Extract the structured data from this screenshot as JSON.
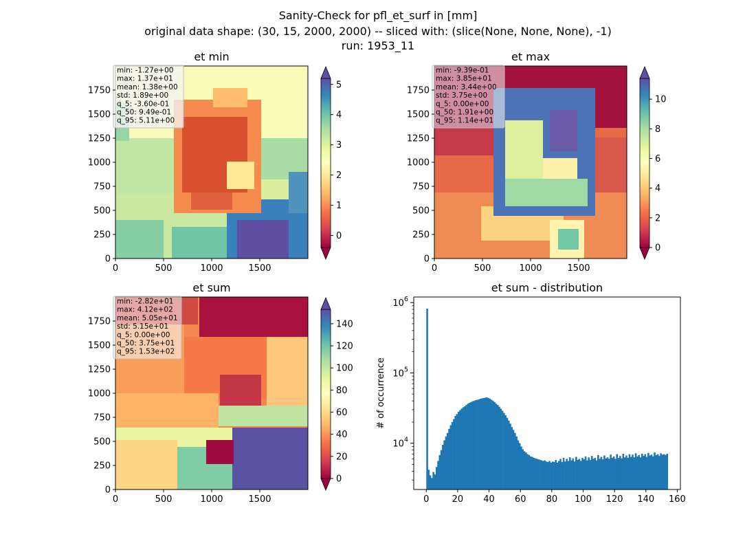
{
  "figure": {
    "title_line1": "Sanity-Check for pfl_et_surf in [mm]",
    "title_line2": "original data shape: (30, 15, 2000, 2000) -- sliced with: (slice(None, None, None), -1)",
    "title_line3": "run: 1953_11"
  },
  "colors": {
    "colormap": "Spectral",
    "histogram_bar": "#1f77b4",
    "stats_box_bg": "#f5f5f5",
    "stats_box_edge": "#bdbdbd"
  },
  "chart_data": [
    {
      "type": "heatmap",
      "title": "et min",
      "xlim": [
        0,
        2000
      ],
      "ylim": [
        0,
        2000
      ],
      "xticks": [
        0,
        500,
        1000,
        1500
      ],
      "yticks": [
        0,
        250,
        500,
        750,
        1000,
        1250,
        1500,
        1750
      ],
      "colormap": "Spectral",
      "colorbar": {
        "min": -0.4,
        "max": 5.2,
        "ticks": [
          0,
          1,
          2,
          3,
          4,
          5
        ],
        "extend": "both"
      },
      "stats": [
        "min: -1.27e+00",
        "max: 1.37e+01",
        "mean: 1.38e+00",
        "std: 1.89e+00",
        "q_5: -3.60e-01",
        "q_50: 9.49e-01",
        "q_95: 5.11e+00"
      ]
    },
    {
      "type": "heatmap",
      "title": "et max",
      "xlim": [
        0,
        2000
      ],
      "ylim": [
        0,
        2000
      ],
      "xticks": [
        0,
        500,
        1000,
        1500
      ],
      "yticks": [
        0,
        250,
        500,
        750,
        1000,
        1250,
        1500,
        1750
      ],
      "colormap": "Spectral",
      "colorbar": {
        "min": 0,
        "max": 11.4,
        "ticks": [
          0,
          2,
          4,
          6,
          8,
          10
        ],
        "extend": "both"
      },
      "stats": [
        "min: -9.39e-01",
        "max: 3.85e+01",
        "mean: 3.44e+00",
        "std: 3.75e+00",
        "q_5: 0.00e+00",
        "q_50: 1.91e+00",
        "q_95: 1.14e+01"
      ]
    },
    {
      "type": "heatmap",
      "title": "et sum",
      "xlim": [
        0,
        2000
      ],
      "ylim": [
        0,
        2000
      ],
      "xticks": [
        0,
        500,
        1000,
        1500
      ],
      "yticks": [
        0,
        250,
        500,
        750,
        1000,
        1250,
        1500,
        1750
      ],
      "colormap": "Spectral",
      "colorbar": {
        "min": 0,
        "max": 153,
        "ticks": [
          0,
          20,
          40,
          60,
          80,
          100,
          120,
          140
        ],
        "extend": "both"
      },
      "stats": [
        "min: -2.82e+01",
        "max: 4.12e+02",
        "mean: 5.05e+01",
        "std: 5.15e+01",
        "q_5: 0.00e+00",
        "q_50: 3.75e+01",
        "q_95: 1.53e+02"
      ]
    },
    {
      "type": "bar",
      "title": "et sum - distribution",
      "xlabel": "",
      "ylabel": "# of occurrence",
      "yscale": "log",
      "xlim": [
        -8,
        162
      ],
      "ylim": [
        2200,
        1200000
      ],
      "xticks": [
        0,
        20,
        40,
        60,
        80,
        100,
        120,
        140,
        160
      ],
      "yticks": [
        {
          "value": 10000,
          "label": "10^4"
        },
        {
          "value": 100000,
          "label": "10^5"
        },
        {
          "value": 1000000,
          "label": "10^6"
        }
      ],
      "bin_width": 1,
      "bins": [
        [
          0,
          820000
        ],
        [
          1,
          4200
        ],
        [
          2,
          3500
        ],
        [
          3,
          3200
        ],
        [
          4,
          3900
        ],
        [
          5,
          3600
        ],
        [
          6,
          4600
        ],
        [
          7,
          5600
        ],
        [
          8,
          6800
        ],
        [
          9,
          8000
        ],
        [
          10,
          9500
        ],
        [
          11,
          11000
        ],
        [
          12,
          12500
        ],
        [
          13,
          14000
        ],
        [
          14,
          16000
        ],
        [
          15,
          18000
        ],
        [
          16,
          20000
        ],
        [
          17,
          22000
        ],
        [
          18,
          24500
        ],
        [
          19,
          26000
        ],
        [
          20,
          28000
        ],
        [
          21,
          29500
        ],
        [
          22,
          31000
        ],
        [
          23,
          32500
        ],
        [
          24,
          33500
        ],
        [
          25,
          35000
        ],
        [
          26,
          36500
        ],
        [
          27,
          37500
        ],
        [
          28,
          38500
        ],
        [
          29,
          39500
        ],
        [
          30,
          40000
        ],
        [
          31,
          41000
        ],
        [
          32,
          41500
        ],
        [
          33,
          42000
        ],
        [
          34,
          43000
        ],
        [
          35,
          43500
        ],
        [
          36,
          44000
        ],
        [
          37,
          44500
        ],
        [
          38,
          45000
        ],
        [
          39,
          44000
        ],
        [
          40,
          43000
        ],
        [
          41,
          41500
        ],
        [
          42,
          40000
        ],
        [
          43,
          38500
        ],
        [
          44,
          36500
        ],
        [
          45,
          35000
        ],
        [
          46,
          33000
        ],
        [
          47,
          31000
        ],
        [
          48,
          29000
        ],
        [
          49,
          27000
        ],
        [
          50,
          25000
        ],
        [
          51,
          23000
        ],
        [
          52,
          21000
        ],
        [
          53,
          19000
        ],
        [
          54,
          17000
        ],
        [
          55,
          15500
        ],
        [
          56,
          14000
        ],
        [
          57,
          12500
        ],
        [
          58,
          11000
        ],
        [
          59,
          10000
        ],
        [
          60,
          9000
        ],
        [
          61,
          8200
        ],
        [
          62,
          7700
        ],
        [
          63,
          7400
        ],
        [
          64,
          7000
        ],
        [
          65,
          6800
        ],
        [
          66,
          6500
        ],
        [
          67,
          6400
        ],
        [
          68,
          6200
        ],
        [
          69,
          6100
        ],
        [
          70,
          6000
        ],
        [
          71,
          5900
        ],
        [
          72,
          5800
        ],
        [
          73,
          5700
        ],
        [
          74,
          5600
        ],
        [
          75,
          5700
        ],
        [
          76,
          5500
        ],
        [
          77,
          5400
        ],
        [
          78,
          5600
        ],
        [
          79,
          5300
        ],
        [
          80,
          5500
        ],
        [
          81,
          5400
        ],
        [
          82,
          5800
        ],
        [
          83,
          5300
        ],
        [
          84,
          5600
        ],
        [
          85,
          6000
        ],
        [
          86,
          5400
        ],
        [
          87,
          6200
        ],
        [
          88,
          5500
        ],
        [
          89,
          6000
        ],
        [
          90,
          5600
        ],
        [
          91,
          6300
        ],
        [
          92,
          5700
        ],
        [
          93,
          6100
        ],
        [
          94,
          5500
        ],
        [
          95,
          6400
        ],
        [
          96,
          5800
        ],
        [
          97,
          6000
        ],
        [
          98,
          5600
        ],
        [
          99,
          6200
        ],
        [
          100,
          5900
        ],
        [
          101,
          6500
        ],
        [
          102,
          5700
        ],
        [
          103,
          6300
        ],
        [
          104,
          5800
        ],
        [
          105,
          6600
        ],
        [
          106,
          6000
        ],
        [
          107,
          6200
        ],
        [
          108,
          5700
        ],
        [
          109,
          6800
        ],
        [
          110,
          6000
        ],
        [
          111,
          6400
        ],
        [
          112,
          5900
        ],
        [
          113,
          6700
        ],
        [
          114,
          6100
        ],
        [
          115,
          6300
        ],
        [
          116,
          6000
        ],
        [
          117,
          6900
        ],
        [
          118,
          6200
        ],
        [
          119,
          6500
        ],
        [
          120,
          6000
        ],
        [
          121,
          7000
        ],
        [
          122,
          6200
        ],
        [
          123,
          6600
        ],
        [
          124,
          6100
        ],
        [
          125,
          7100
        ],
        [
          126,
          6300
        ],
        [
          127,
          6700
        ],
        [
          128,
          6200
        ],
        [
          129,
          7000
        ],
        [
          130,
          6400
        ],
        [
          131,
          6900
        ],
        [
          132,
          6300
        ],
        [
          133,
          7200
        ],
        [
          134,
          6500
        ],
        [
          135,
          6800
        ],
        [
          136,
          6300
        ],
        [
          137,
          7100
        ],
        [
          138,
          6600
        ],
        [
          139,
          7000
        ],
        [
          140,
          6400
        ],
        [
          141,
          7300
        ],
        [
          142,
          6700
        ],
        [
          143,
          6900
        ],
        [
          144,
          6500
        ],
        [
          145,
          7400
        ],
        [
          146,
          6800
        ],
        [
          147,
          7000
        ],
        [
          148,
          6600
        ],
        [
          149,
          7200
        ],
        [
          150,
          6900
        ],
        [
          151,
          7000
        ],
        [
          152,
          6800
        ],
        [
          153,
          7100
        ]
      ]
    }
  ]
}
